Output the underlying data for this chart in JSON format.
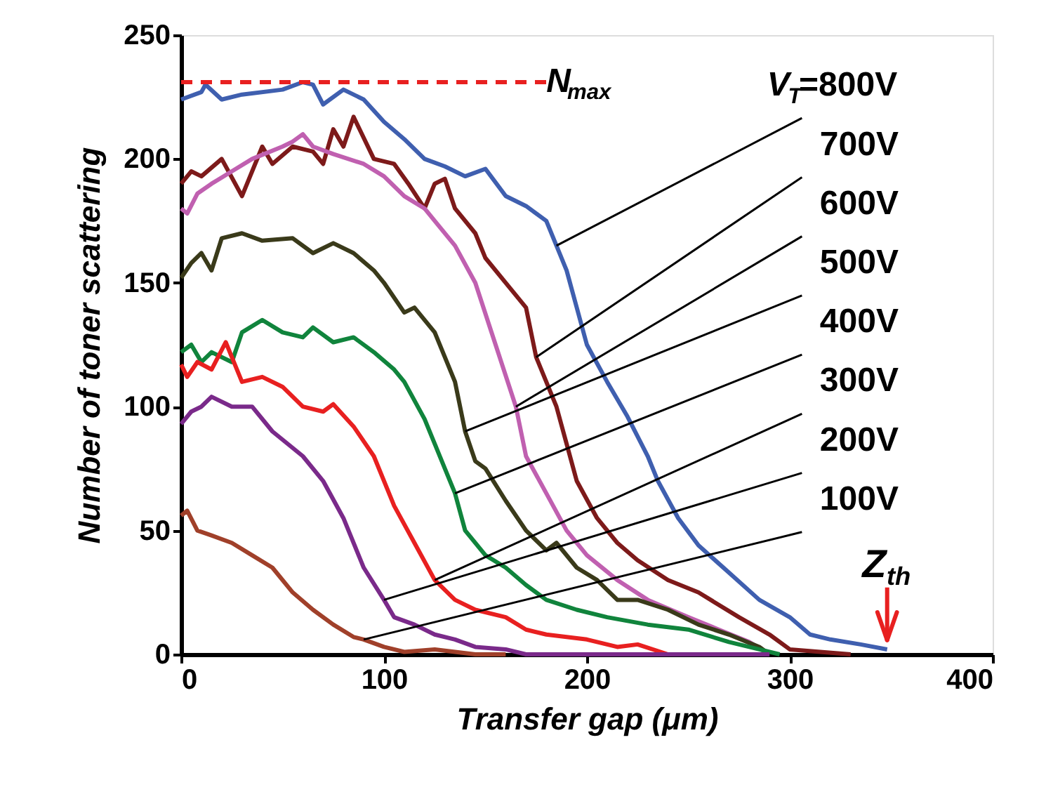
{
  "chart_data": {
    "type": "line",
    "xlabel": "Transfer gap  (μm)",
    "ylabel": "Number of toner scattering",
    "xlim": [
      0,
      400
    ],
    "ylim": [
      0,
      250
    ],
    "xticks": [
      0,
      100,
      200,
      300,
      400
    ],
    "yticks": [
      0,
      50,
      100,
      150,
      200,
      250
    ],
    "grid": false,
    "marker": "none",
    "line_style": "solid",
    "series": [
      {
        "color": "#3f5faf",
        "x": [
          0,
          10,
          12,
          20,
          30,
          50,
          60,
          65,
          70,
          80,
          90,
          100,
          110,
          120,
          130,
          140,
          150,
          160,
          170,
          180,
          185,
          190,
          195,
          200,
          210,
          220,
          230,
          235,
          245,
          255,
          270,
          285,
          300,
          310,
          320,
          335,
          348
        ],
        "values": [
          224,
          227,
          230,
          224,
          226,
          228,
          231,
          230,
          222,
          228,
          224,
          215,
          208,
          200,
          197,
          193,
          196,
          185,
          181,
          175,
          165,
          155,
          140,
          125,
          110,
          96,
          80,
          70,
          55,
          44,
          33,
          22,
          15,
          8,
          6,
          4,
          2
        ]
      },
      {
        "color": "#7d1a1a",
        "x": [
          0,
          5,
          10,
          20,
          30,
          40,
          45,
          55,
          65,
          70,
          75,
          80,
          85,
          95,
          105,
          112,
          120,
          125,
          130,
          135,
          145,
          150,
          160,
          170,
          175,
          185,
          190,
          195,
          205,
          215,
          225,
          240,
          255,
          275,
          290,
          300,
          330
        ],
        "values": [
          190,
          195,
          193,
          200,
          185,
          205,
          198,
          205,
          203,
          198,
          212,
          205,
          217,
          200,
          198,
          190,
          180,
          190,
          192,
          180,
          170,
          160,
          150,
          140,
          120,
          100,
          85,
          70,
          55,
          45,
          38,
          30,
          25,
          15,
          8,
          2,
          0
        ]
      },
      {
        "color": "#c060b0",
        "x": [
          0,
          3,
          8,
          15,
          25,
          35,
          50,
          55,
          60,
          65,
          75,
          90,
          100,
          110,
          120,
          125,
          135,
          145,
          155,
          165,
          170,
          180,
          190,
          200,
          215,
          230,
          250,
          265,
          280,
          290
        ],
        "values": [
          180,
          178,
          186,
          190,
          195,
          200,
          205,
          207,
          210,
          205,
          202,
          198,
          193,
          185,
          180,
          175,
          165,
          150,
          125,
          100,
          80,
          65,
          50,
          40,
          30,
          22,
          15,
          10,
          5,
          0
        ]
      },
      {
        "color": "#3a3a1a",
        "x": [
          0,
          5,
          10,
          15,
          20,
          30,
          40,
          55,
          65,
          75,
          85,
          95,
          100,
          110,
          115,
          125,
          135,
          140,
          145,
          150,
          160,
          170,
          180,
          185,
          195,
          205,
          215,
          225,
          240,
          255,
          270,
          285,
          290
        ],
        "values": [
          152,
          158,
          162,
          155,
          168,
          170,
          167,
          168,
          162,
          166,
          162,
          155,
          150,
          138,
          140,
          130,
          110,
          90,
          78,
          75,
          62,
          50,
          42,
          45,
          35,
          30,
          22,
          22,
          18,
          12,
          8,
          3,
          0
        ]
      },
      {
        "color": "#10843c",
        "x": [
          0,
          5,
          10,
          15,
          25,
          30,
          40,
          50,
          60,
          65,
          75,
          85,
          95,
          105,
          110,
          120,
          125,
          135,
          140,
          150,
          160,
          170,
          180,
          195,
          210,
          230,
          250,
          270,
          285,
          295
        ],
        "values": [
          122,
          125,
          118,
          122,
          118,
          130,
          135,
          130,
          128,
          132,
          126,
          128,
          122,
          115,
          110,
          95,
          85,
          65,
          50,
          40,
          35,
          28,
          22,
          18,
          15,
          12,
          10,
          5,
          2,
          0
        ]
      },
      {
        "color": "#e82020",
        "x": [
          0,
          3,
          8,
          15,
          22,
          30,
          40,
          50,
          60,
          70,
          75,
          85,
          95,
          105,
          115,
          125,
          135,
          145,
          160,
          170,
          180,
          200,
          215,
          225,
          240
        ],
        "values": [
          117,
          112,
          118,
          115,
          126,
          110,
          112,
          108,
          100,
          98,
          101,
          92,
          80,
          60,
          45,
          30,
          22,
          18,
          15,
          10,
          8,
          6,
          3,
          4,
          0
        ]
      },
      {
        "color": "#7a2a8a",
        "x": [
          0,
          5,
          10,
          15,
          25,
          35,
          45,
          60,
          70,
          80,
          90,
          100,
          105,
          115,
          125,
          135,
          145,
          160,
          170,
          290
        ],
        "values": [
          93,
          98,
          100,
          104,
          100,
          100,
          90,
          80,
          70,
          55,
          35,
          22,
          15,
          12,
          8,
          6,
          3,
          2,
          0,
          0
        ]
      },
      {
        "color": "#a0402a",
        "x": [
          0,
          3,
          8,
          15,
          25,
          35,
          45,
          55,
          65,
          75,
          85,
          90,
          100,
          110,
          125,
          145,
          160
        ],
        "values": [
          56,
          58,
          50,
          48,
          45,
          40,
          35,
          25,
          18,
          12,
          7,
          6,
          3,
          1,
          2,
          0,
          0
        ]
      }
    ],
    "ref_lines": [
      {
        "axis": "y",
        "value": 231,
        "label": "N$_{max}$",
        "color": "#e82020",
        "line_style": "dashed"
      }
    ],
    "annotations": [
      {
        "text": "V$_{T}$=800V",
        "x": 185,
        "y": 165
      },
      {
        "text": "700V",
        "x": 175,
        "y": 120
      },
      {
        "text": "600V",
        "x": 165,
        "y": 100
      },
      {
        "text": "500V",
        "x": 140,
        "y": 90
      },
      {
        "text": "400V",
        "x": 135,
        "y": 65
      },
      {
        "text": "300V",
        "x": 125,
        "y": 30
      },
      {
        "text": "200V",
        "x": 100,
        "y": 22
      },
      {
        "text": "100V",
        "x": 90,
        "y": 6
      },
      {
        "text": "Z$_{th}$",
        "x": 348,
        "y": 2
      }
    ]
  }
}
